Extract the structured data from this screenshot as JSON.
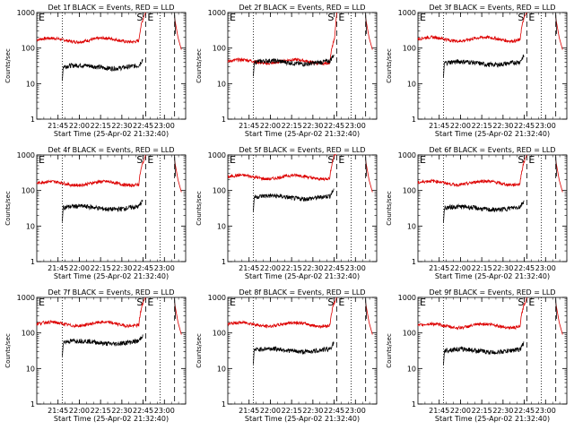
{
  "chart_data": {
    "type": "line",
    "scale": "log",
    "ylim": [
      1,
      1000
    ],
    "ylabel": "Counts/sec",
    "xlabel": "Start Time (25-Apr-02 21:32:40)",
    "x_ticks": [
      "21:45",
      "22:00",
      "22:15",
      "22:30",
      "22:45",
      "23:00"
    ],
    "y_ticks": [
      "1",
      "10",
      "100",
      "1000"
    ],
    "colors": {
      "events": "#000000",
      "lld": "#dd0000"
    },
    "marker_labels": {
      "left": "E",
      "right_s": "S",
      "right_e": "E"
    },
    "panels": [
      {
        "title": "Det 1f BLACK = Events, RED = LLD",
        "events_level": 30,
        "lld_level": 170
      },
      {
        "title": "Det 2f BLACK = Events, RED = LLD",
        "events_level": 40,
        "lld_level": 42
      },
      {
        "title": "Det 3f BLACK = Events, RED = LLD",
        "events_level": 38,
        "lld_level": 180
      },
      {
        "title": "Det 4f BLACK = Events, RED = LLD",
        "events_level": 33,
        "lld_level": 160
      },
      {
        "title": "Det 5f BLACK = Events, RED = LLD",
        "events_level": 65,
        "lld_level": 240
      },
      {
        "title": "Det 6f BLACK = Events, RED = LLD",
        "events_level": 32,
        "lld_level": 165
      },
      {
        "title": "Det 7f BLACK = Events, RED = LLD",
        "events_level": 55,
        "lld_level": 180
      },
      {
        "title": "Det 8f BLACK = Events, RED = LLD",
        "events_level": 33,
        "lld_level": 175
      },
      {
        "title": "Det 9f BLACK = Events, RED = LLD",
        "events_level": 32,
        "lld_level": 160
      }
    ]
  }
}
